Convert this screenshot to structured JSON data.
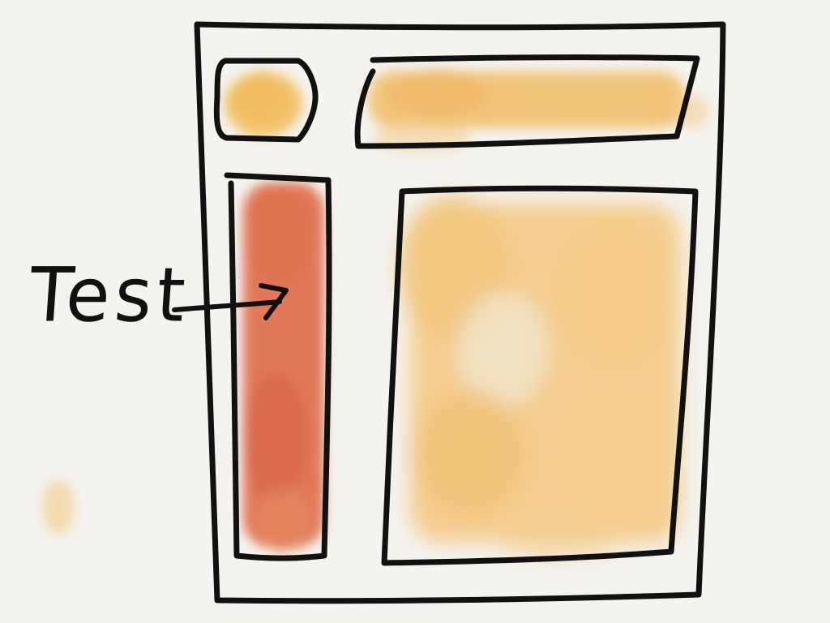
{
  "annotation": {
    "label": "Test"
  },
  "colors": {
    "background": "#f4f3ef",
    "ink": "#111111",
    "logo_fill": "#f2b23a",
    "header_fill": "#f1a93a",
    "sidebar_fill": "#d9502a",
    "content_fill": "#f2b24a",
    "speck_fill": "#f1c77a"
  }
}
